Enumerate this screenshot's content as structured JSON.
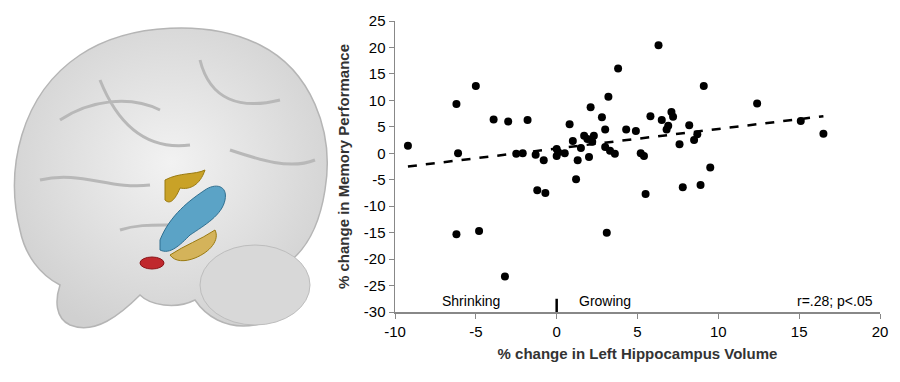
{
  "chart_data": {
    "type": "scatter",
    "xlabel": "% change in Left Hippocampus Volume",
    "ylabel": "% change in Memory Performance",
    "x": [
      -9.2,
      -6.2,
      -6.1,
      -6.2,
      -5.0,
      -4.8,
      -3.9,
      -3.2,
      -3.0,
      -2.5,
      -2.1,
      -1.8,
      -1.3,
      -1.2,
      -0.8,
      -0.7,
      0.0,
      0.0,
      0.1,
      0.5,
      0.8,
      1.0,
      1.2,
      1.3,
      1.5,
      1.7,
      1.9,
      2.0,
      2.1,
      2.2,
      2.3,
      2.8,
      3.0,
      3.0,
      3.1,
      3.2,
      3.3,
      3.6,
      3.8,
      4.3,
      4.9,
      5.2,
      5.4,
      5.5,
      5.8,
      6.3,
      6.5,
      6.8,
      6.9,
      7.1,
      7.2,
      7.6,
      7.8,
      8.2,
      8.5,
      8.7,
      8.9,
      9.1,
      9.5,
      12.4,
      15.1,
      16.5
    ],
    "values": [
      1.4,
      9.3,
      0.0,
      -15.3,
      12.7,
      -14.7,
      6.4,
      -23.3,
      6.0,
      -0.1,
      0.0,
      6.3,
      -0.3,
      -7.0,
      -1.3,
      -7.5,
      0.8,
      -0.5,
      0.2,
      0.0,
      5.5,
      2.3,
      -4.9,
      -1.3,
      1.0,
      3.3,
      2.7,
      -0.7,
      8.7,
      2.2,
      3.3,
      6.8,
      1.2,
      4.5,
      -15.0,
      10.7,
      0.5,
      -0.1,
      16.0,
      4.5,
      4.2,
      0.0,
      -0.5,
      -7.7,
      7.0,
      20.4,
      6.3,
      4.5,
      5.2,
      7.8,
      6.9,
      1.7,
      -6.4,
      5.3,
      2.5,
      3.6,
      -6.0,
      12.7,
      -2.7,
      9.4,
      6.1,
      3.7
    ],
    "color": "#000000",
    "marker": "circle",
    "trend_line": {
      "x": [
        -9.2,
        16.5
      ],
      "y": [
        -2.5,
        7.0
      ],
      "line_style": "dash",
      "color": "#000000"
    },
    "divider": {
      "x": 0,
      "y": [
        -30,
        -27.5
      ]
    },
    "annotations": [
      {
        "text": "Shrinking",
        "x": -5.3,
        "y": -28
      },
      {
        "text": "Growing",
        "x": 3.0,
        "y": -28
      },
      {
        "text": "r=.28; p<.05",
        "x": 17.2,
        "y": -28
      }
    ],
    "xlim": [
      -10,
      20
    ],
    "xticks": [
      -10,
      -5,
      0,
      5,
      10,
      15,
      20
    ],
    "ylim": [
      -30,
      25
    ],
    "yticks": [
      -30,
      -25,
      -20,
      -15,
      -10,
      -5,
      0,
      5,
      10,
      15,
      20,
      25
    ],
    "grid": false
  }
}
